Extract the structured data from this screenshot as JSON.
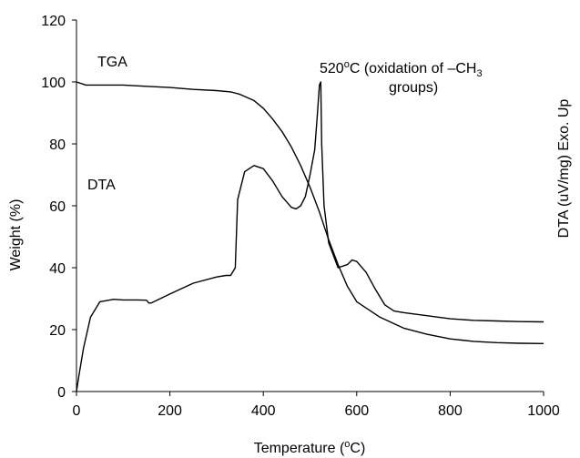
{
  "chart_data": {
    "type": "line",
    "xlabel": "Temperature (°C)",
    "xlabel_parts": {
      "pre": "Temperature (",
      "sup": "o",
      "post": "C)"
    },
    "ylabel": "Weight (%)",
    "y2label": "DTA (uV/mg) Exo. Up",
    "xlim": [
      0,
      1000
    ],
    "ylim": [
      0,
      120
    ],
    "xticks": [
      0,
      200,
      400,
      600,
      800,
      1000
    ],
    "yticks": [
      0,
      20,
      40,
      60,
      80,
      100,
      120
    ],
    "grid": false,
    "legend": "none",
    "series": [
      {
        "name": "TGA",
        "x": [
          0,
          20,
          50,
          100,
          150,
          200,
          250,
          300,
          330,
          350,
          380,
          400,
          420,
          440,
          460,
          480,
          500,
          520,
          540,
          560,
          580,
          600,
          650,
          700,
          750,
          800,
          850,
          900,
          950,
          1000
        ],
        "y": [
          100,
          99,
          99,
          99,
          98.6,
          98.2,
          97.6,
          97.2,
          96.8,
          96,
          94,
          91.5,
          88,
          84,
          79,
          73,
          66,
          58,
          49,
          41,
          34,
          29,
          24,
          20.5,
          18.5,
          17,
          16.2,
          15.8,
          15.6,
          15.5
        ]
      },
      {
        "name": "DTA",
        "x": [
          0,
          5,
          15,
          30,
          50,
          80,
          100,
          130,
          150,
          155,
          160,
          200,
          250,
          300,
          320,
          330,
          340,
          345,
          360,
          380,
          400,
          420,
          440,
          460,
          470,
          480,
          490,
          500,
          510,
          515,
          520,
          523,
          525,
          530,
          540,
          560,
          580,
          590,
          600,
          620,
          640,
          660,
          680,
          700,
          750,
          800,
          850,
          900,
          950,
          1000
        ],
        "y": [
          0,
          5,
          14,
          24,
          29,
          29.8,
          29.6,
          29.6,
          29.5,
          28.6,
          28.6,
          31.5,
          35,
          37,
          37.5,
          37.5,
          40,
          62,
          71,
          73,
          72,
          68,
          63,
          59.5,
          59,
          60,
          63,
          70,
          78,
          88,
          99,
          100,
          80,
          60,
          48,
          40,
          41,
          42.5,
          42,
          38.5,
          33,
          28,
          26,
          25.5,
          24.5,
          23.5,
          23,
          22.8,
          22.6,
          22.5
        ]
      }
    ],
    "annotations": [
      {
        "text": "TGA"
      },
      {
        "text": "DTA"
      },
      {
        "line1_pre": "520",
        "line1_sup": "o",
        "line1_post": "C (oxidation of –CH",
        "line1_sub": "3",
        "line2": "groups)"
      }
    ]
  }
}
